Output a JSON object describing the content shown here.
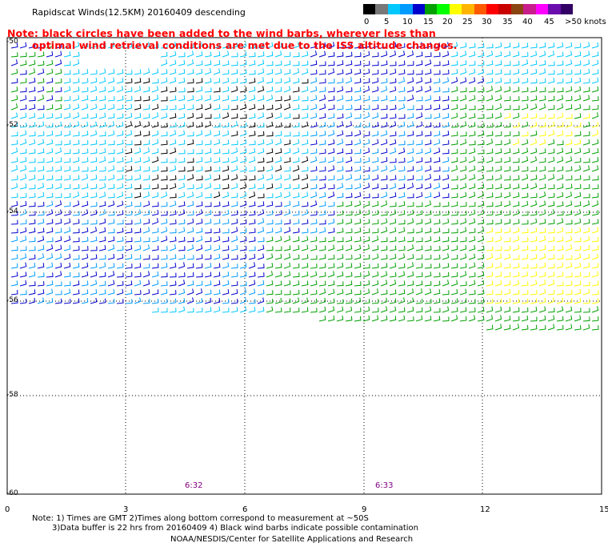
{
  "title": "Rapidscat Winds(12.5KM) 20160409 descending",
  "note_line1": "Note: black circles have been added to the wind barbs, wherever less than",
  "note_line2": "optimal wind retrieval conditions are met due to the ISS altitude changes.",
  "legend": {
    "labels": [
      "0",
      "5",
      "10",
      "15",
      "20",
      "25",
      "30",
      "35",
      "40",
      "45",
      ">50 knots"
    ],
    "colors": [
      "#000000",
      "#787878",
      "#00c8ff",
      "#009bff",
      "#0000cd",
      "#00a000",
      "#00ff00",
      "#ffff00",
      "#ffb400",
      "#ff5a00",
      "#ff0000",
      "#c80000",
      "#8b4513",
      "#c81e8c",
      "#ff00ff",
      "#6a0dad",
      "#320064"
    ]
  },
  "axes": {
    "y_labels": [
      "-50",
      "-52",
      "-54",
      "-56",
      "-58",
      "-60"
    ],
    "x_labels": [
      "0",
      "3",
      "6",
      "9",
      "12",
      "15"
    ]
  },
  "time_labels": [
    "6:32",
    "6:33"
  ],
  "footer": {
    "line1": "Note: 1) Times are GMT 2)Times along bottom correspond to measurement at ~50S",
    "line2": "3)Data buffer is 22 hrs from 20160409 4) Black wind barbs indicate possible contamination",
    "line3": "NOAA/NESDIS/Center for Satellite Applications and Research"
  }
}
